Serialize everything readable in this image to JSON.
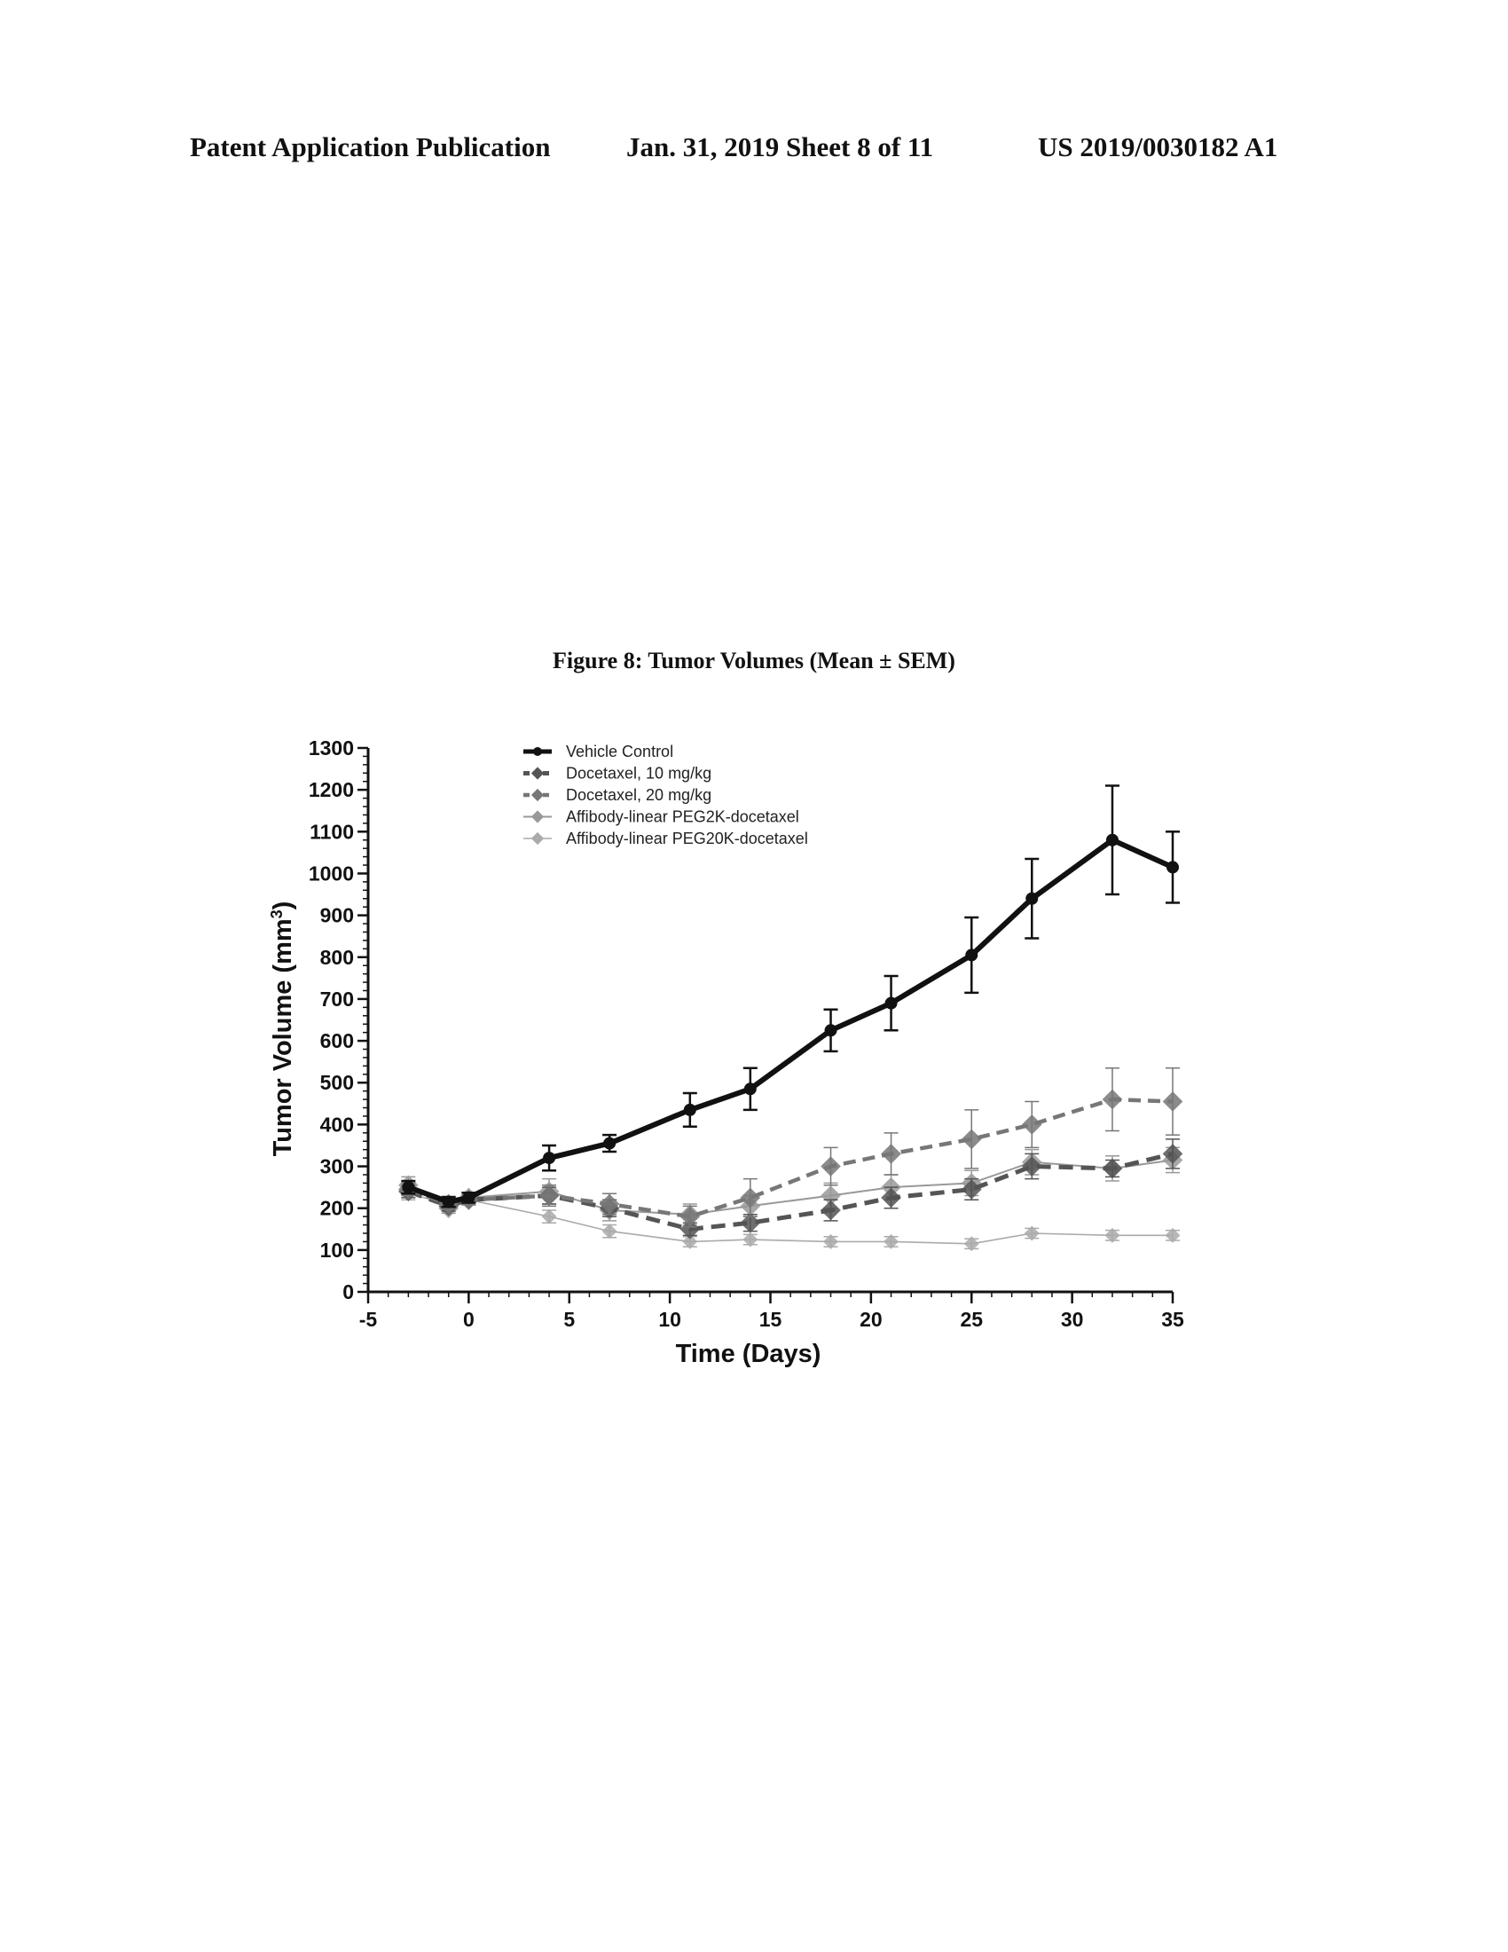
{
  "header": {
    "left": "Patent Application Publication",
    "middle": "Jan. 31, 2019  Sheet 8 of 11",
    "right": "US 2019/0030182 A1"
  },
  "figure": {
    "title": "Figure 8: Tumor Volumes (Mean ± SEM)"
  },
  "chart_data": {
    "type": "line",
    "title": "Figure 8: Tumor Volumes (Mean ± SEM)",
    "xlabel": "Time (Days)",
    "ylabel": "Tumor Volume (mm",
    "ylabel_sup": "3",
    "ylabel_end": ")",
    "xlim": [
      -5,
      35
    ],
    "ylim": [
      0,
      1300
    ],
    "xticks": [
      -5,
      0,
      5,
      10,
      15,
      20,
      25,
      30,
      35
    ],
    "yticks": [
      0,
      100,
      200,
      300,
      400,
      500,
      600,
      700,
      800,
      900,
      1000,
      1100,
      1200,
      1300
    ],
    "grid": false,
    "legend_position": "top-left",
    "series": [
      {
        "name": "Vehicle Control",
        "color": "#111111",
        "x": [
          -3,
          -1,
          0,
          4,
          7,
          11,
          14,
          18,
          21,
          25,
          28,
          32,
          35
        ],
        "y": [
          250,
          215,
          225,
          320,
          355,
          435,
          485,
          625,
          690,
          805,
          940,
          1080,
          1015
        ],
        "err": [
          15,
          12,
          12,
          30,
          20,
          40,
          50,
          50,
          65,
          90,
          95,
          130,
          85
        ]
      },
      {
        "name": "Docetaxel, 10 mg/kg",
        "color": "#555555",
        "x": [
          -3,
          -1,
          0,
          4,
          7,
          11,
          14,
          18,
          21,
          25,
          28,
          32,
          35
        ],
        "y": [
          240,
          205,
          220,
          230,
          200,
          150,
          165,
          195,
          225,
          245,
          300,
          295,
          330
        ],
        "err": [
          15,
          12,
          12,
          20,
          20,
          15,
          20,
          25,
          25,
          25,
          30,
          20,
          35
        ]
      },
      {
        "name": "Docetaxel, 20 mg/kg",
        "color": "#777777",
        "x": [
          -3,
          -1,
          0,
          4,
          7,
          11,
          14,
          18,
          21,
          25,
          28,
          32,
          35
        ],
        "y": [
          245,
          210,
          220,
          230,
          210,
          180,
          225,
          300,
          330,
          365,
          400,
          460,
          455
        ],
        "err": [
          15,
          12,
          12,
          25,
          25,
          25,
          45,
          45,
          50,
          70,
          55,
          75,
          80
        ]
      },
      {
        "name": "Affibody-linear PEG2K-docetaxel",
        "color": "#999999",
        "x": [
          -3,
          -1,
          0,
          4,
          7,
          11,
          14,
          18,
          21,
          25,
          28,
          32,
          35
        ],
        "y": [
          255,
          200,
          225,
          240,
          195,
          185,
          205,
          230,
          250,
          260,
          310,
          295,
          315
        ],
        "err": [
          20,
          12,
          12,
          30,
          25,
          25,
          25,
          30,
          30,
          30,
          30,
          30,
          30
        ]
      },
      {
        "name": "Affibody-linear PEG20K-docetaxel",
        "color": "#aaaaaa",
        "x": [
          -3,
          -1,
          0,
          4,
          7,
          11,
          14,
          18,
          21,
          25,
          28,
          32,
          35
        ],
        "y": [
          235,
          210,
          220,
          180,
          145,
          120,
          125,
          120,
          120,
          115,
          140,
          135,
          135
        ],
        "err": [
          15,
          12,
          12,
          15,
          15,
          12,
          12,
          12,
          12,
          12,
          12,
          12,
          12
        ]
      }
    ]
  }
}
